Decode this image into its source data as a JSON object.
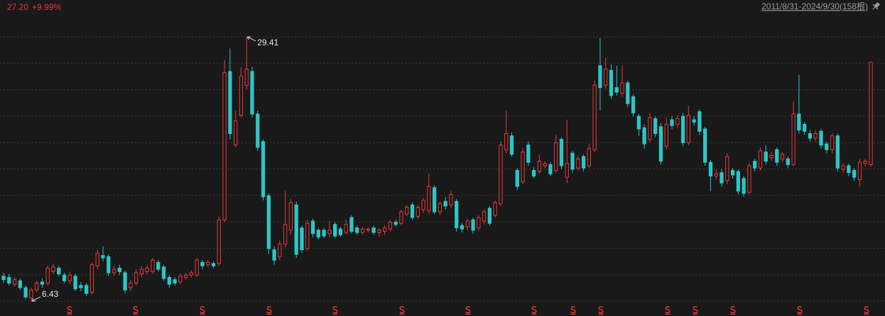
{
  "chart_data": {
    "type": "candlestick",
    "last_price": "27.20",
    "change": "+9.99%",
    "range_label": "2011/8/31-2024/9/30(158根)",
    "up_color": "#e8383d",
    "down_color": "#2fc5c5",
    "grid": true,
    "ylim": [
      5.14,
      31.38
    ],
    "open": [
      8.6,
      8.5,
      7.9,
      8.2,
      7.6,
      6.7,
      7.4,
      8.1,
      8.0,
      9.0,
      9.3,
      8.7,
      8.2,
      8.6,
      7.8,
      7.8,
      7.2,
      9.5,
      10.4,
      10.3,
      8.9,
      9.3,
      8.9,
      7.6,
      8.0,
      8.8,
      9.0,
      9.0,
      9.8,
      9.4,
      8.5,
      8.3,
      8.1,
      8.5,
      8.7,
      8.7,
      9.8,
      9.6,
      9.7,
      9.7,
      13.5,
      26.4,
      20.0,
      22.6,
      25.2,
      26.4,
      22.7,
      20.3,
      15.6,
      10.9,
      10.3,
      11.4,
      12.6,
      14.8,
      12.8,
      11.0,
      13.4,
      12.6,
      12.6,
      12.3,
      13.1,
      12.7,
      12.4,
      13.7,
      12.8,
      12.4,
      12.6,
      12.8,
      12.4,
      12.5,
      12.7,
      13.3,
      13.2,
      14.0,
      14.8,
      13.8,
      14.4,
      14.3,
      16.3,
      14.2,
      15.1,
      14.8,
      15.1,
      13.0,
      12.9,
      13.5,
      12.8,
      13.4,
      14.5,
      13.9,
      14.9,
      19.6,
      20.8,
      17.8,
      16.8,
      20.0,
      17.8,
      17.7,
      18.2,
      18.3,
      17.8,
      20.5,
      17.2,
      19.3,
      18.0,
      19.0,
      18.2,
      19.6,
      26.9,
      25.2,
      26.5,
      25.0,
      24.5,
      25.4,
      24.2,
      22.5,
      21.5,
      20.5,
      22.3,
      21.6,
      19.9,
      22.2,
      21.8,
      22.5,
      20.2,
      22.2,
      22.9,
      21.4,
      18.5,
      17.3,
      17.6,
      16.9,
      17.8,
      17.7,
      17.1,
      15.9,
      18.6,
      18.0,
      19.4,
      18.9,
      19.6,
      18.8,
      18.8,
      18.3,
      22.7,
      21.8,
      21.0,
      20.6,
      21.2,
      20.1,
      19.6,
      20.8,
      17.9,
      18.2,
      17.8,
      17.0,
      18.4,
      18.3
    ],
    "high": [
      8.9,
      8.8,
      8.5,
      8.4,
      7.8,
      7.6,
      8.2,
      8.4,
      9.5,
      9.7,
      9.5,
      8.9,
      9.0,
      8.8,
      8.1,
      8.0,
      9.8,
      10.9,
      11.2,
      10.5,
      9.5,
      9.6,
      9.1,
      8.3,
      9.2,
      9.5,
      9.6,
      10.2,
      10.0,
      9.6,
      8.7,
      8.5,
      8.8,
      8.9,
      9.1,
      10.2,
      10.0,
      10.0,
      9.9,
      13.8,
      27.4,
      28.4,
      23.0,
      26.8,
      29.41,
      26.8,
      23.0,
      20.5,
      15.8,
      11.2,
      11.7,
      16.0,
      15.3,
      15.1,
      13.0,
      13.5,
      13.6,
      12.8,
      12.8,
      13.4,
      13.3,
      12.9,
      13.5,
      13.9,
      13.0,
      12.9,
      12.9,
      13.0,
      12.8,
      13.0,
      13.5,
      13.5,
      14.4,
      14.8,
      15.0,
      14.8,
      15.4,
      17.5,
      16.5,
      15.1,
      15.5,
      16.0,
      15.3,
      13.2,
      13.6,
      13.7,
      13.9,
      14.4,
      14.7,
      15.2,
      20.3,
      23.0,
      21.1,
      18.0,
      19.7,
      20.3,
      18.1,
      19.2,
      18.6,
      18.5,
      20.9,
      20.7,
      22.2,
      19.5,
      19.1,
      19.2,
      20.1,
      25.6,
      29.3,
      27.6,
      27.0,
      26.9,
      26.9,
      25.6,
      24.4,
      22.7,
      21.8,
      22.8,
      22.5,
      21.9,
      22.4,
      22.5,
      22.6,
      22.8,
      23.4,
      22.5,
      23.1,
      21.6,
      18.7,
      17.9,
      17.9,
      19.3,
      18.0,
      17.9,
      17.3,
      18.4,
      18.8,
      19.8,
      20.0,
      19.4,
      19.8,
      19.4,
      19.0,
      23.8,
      26.1,
      22.0,
      21.3,
      21.3,
      21.4,
      20.3,
      21.0,
      21.0,
      18.4,
      18.4,
      18.0,
      18.8,
      18.8,
      27.2
    ],
    "low": [
      8.0,
      7.8,
      7.7,
      7.4,
      6.6,
      6.43,
      7.2,
      7.6,
      7.8,
      8.8,
      8.6,
      8.0,
      7.9,
      7.3,
      7.3,
      6.9,
      7.0,
      9.2,
      9.9,
      8.6,
      8.6,
      8.7,
      7.1,
      7.3,
      7.8,
      8.5,
      8.8,
      8.8,
      9.0,
      8.2,
      7.6,
      7.8,
      7.9,
      8.3,
      8.5,
      8.5,
      9.2,
      9.4,
      9.3,
      9.5,
      13.3,
      20.5,
      19.8,
      22.4,
      24.8,
      22.4,
      19.5,
      15.2,
      10.5,
      9.6,
      10.0,
      11.1,
      12.2,
      10.2,
      10.6,
      10.8,
      12.0,
      11.8,
      11.9,
      12.0,
      11.9,
      12.0,
      12.2,
      12.3,
      12.2,
      12.2,
      12.4,
      12.2,
      12.0,
      12.2,
      12.5,
      12.9,
      13.0,
      13.8,
      13.5,
      13.6,
      14.1,
      14.0,
      14.0,
      13.9,
      14.4,
      14.5,
      12.5,
      12.4,
      12.6,
      12.3,
      12.5,
      13.1,
      13.0,
      13.7,
      14.7,
      19.3,
      19.0,
      16.1,
      16.6,
      18.2,
      17.1,
      17.5,
      18.0,
      17.3,
      17.6,
      17.9,
      16.7,
      17.6,
      17.8,
      17.7,
      18.0,
      19.4,
      23.0,
      24.9,
      24.0,
      24.3,
      24.2,
      23.3,
      22.5,
      20.8,
      19.7,
      20.2,
      20.7,
      18.3,
      19.6,
      21.4,
      21.5,
      19.9,
      20.0,
      21.7,
      20.9,
      18.2,
      16.0,
      17.0,
      16.4,
      16.6,
      17.1,
      15.7,
      15.5,
      15.7,
      17.7,
      17.8,
      18.3,
      18.6,
      18.2,
      18.5,
      18.0,
      18.1,
      21.0,
      20.9,
      20.3,
      20.3,
      19.7,
      19.3,
      19.3,
      17.7,
      17.6,
      17.3,
      16.9,
      16.4,
      18.1,
      18.1
    ],
    "close": [
      8.3,
      8.0,
      8.3,
      7.6,
      6.8,
      7.4,
      8.0,
      7.9,
      9.3,
      9.4,
      8.8,
      8.2,
      8.7,
      7.5,
      7.6,
      7.1,
      9.6,
      10.6,
      10.2,
      8.9,
      9.2,
      9.0,
      7.4,
      8.0,
      8.9,
      9.2,
      9.3,
      10.0,
      9.2,
      8.4,
      7.9,
      8.0,
      8.6,
      8.7,
      8.9,
      10.0,
      9.5,
      9.8,
      9.5,
      13.5,
      26.3,
      21.0,
      22.1,
      26.0,
      26.6,
      22.7,
      19.8,
      15.5,
      11.0,
      10.0,
      11.4,
      13.1,
      15.0,
      10.5,
      10.9,
      13.2,
      12.3,
      12.0,
      12.1,
      12.6,
      12.1,
      12.2,
      13.1,
      12.5,
      12.4,
      12.7,
      12.7,
      12.4,
      12.6,
      12.8,
      13.3,
      13.1,
      14.2,
      14.6,
      13.7,
      14.6,
      15.2,
      16.4,
      14.2,
      14.9,
      14.7,
      15.7,
      12.8,
      12.7,
      13.4,
      12.6,
      13.7,
      14.2,
      13.2,
      15.0,
      20.0,
      21.0,
      19.2,
      16.4,
      19.4,
      18.5,
      17.3,
      18.6,
      18.4,
      17.5,
      20.2,
      18.2,
      18.4,
      17.9,
      18.8,
      18.0,
      19.7,
      25.2,
      25.0,
      26.6,
      24.3,
      24.6,
      25.4,
      23.6,
      22.8,
      21.4,
      20.1,
      22.4,
      21.0,
      18.6,
      21.8,
      21.7,
      22.3,
      20.2,
      22.6,
      22.0,
      21.2,
      18.5,
      17.3,
      17.5,
      16.7,
      19.0,
      17.4,
      16.0,
      15.8,
      18.2,
      18.0,
      19.5,
      18.6,
      19.1,
      18.5,
      19.2,
      18.3,
      22.7,
      21.3,
      21.2,
      20.6,
      21.0,
      20.0,
      19.6,
      20.8,
      18.0,
      18.2,
      17.6,
      17.2,
      18.5,
      18.6,
      27.2
    ]
  }
}
